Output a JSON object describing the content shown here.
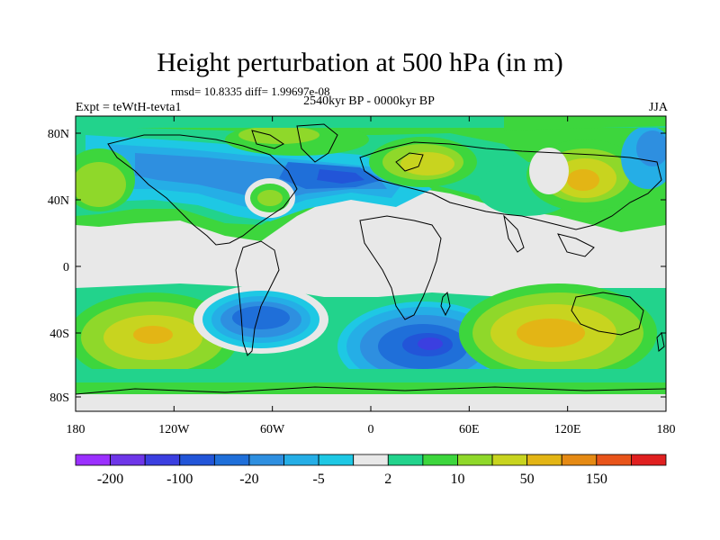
{
  "title": "Height perturbation at 500 hPa (in m)",
  "stats": "rmsd= 10.8335 diff= 1.99697e-08",
  "experiment": "Expt = teWtH-tevta1",
  "period": "2540kyr BP - 0000kyr BP",
  "season": "JJA",
  "map": {
    "lat_ticks": [
      "80N",
      "40N",
      "0",
      "40S",
      "80S"
    ],
    "lon_ticks": [
      "180",
      "120W",
      "60W",
      "0",
      "60E",
      "120E",
      "180"
    ]
  },
  "colorbar": {
    "labels": [
      "-200",
      "-100",
      "-20",
      "-5",
      "2",
      "10",
      "50",
      "150"
    ],
    "colors": [
      "#9b30ff",
      "#6e36e8",
      "#3b3fe0",
      "#2255d8",
      "#1f6fd9",
      "#2e8fe0",
      "#25aee6",
      "#1ec8e4",
      "#e8e8e8",
      "#22d38c",
      "#3dd63d",
      "#8fd82a",
      "#c8d41f",
      "#e3b515",
      "#e58a14",
      "#e8541a",
      "#e02020"
    ]
  }
}
